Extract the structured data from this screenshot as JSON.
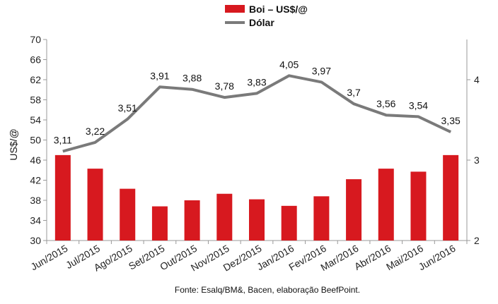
{
  "chart_data": {
    "type": "bar+line",
    "categories": [
      "Jun/2015",
      "Jul/2015",
      "Ago/2015",
      "Set/2015",
      "Out/2015",
      "Nov/2015",
      "Dez/2015",
      "Jan/2016",
      "Fev/2016",
      "Mar/2016",
      "Abr/2016",
      "Mai/2016",
      "Jun/2016"
    ],
    "series": [
      {
        "name": "Boi – US$/@",
        "type": "bar",
        "axis": "left",
        "color": "#d7191f",
        "values": [
          47.0,
          44.3,
          40.3,
          36.8,
          38.0,
          39.3,
          38.2,
          36.9,
          38.8,
          42.2,
          44.3,
          43.7,
          47.0
        ]
      },
      {
        "name": "Dólar",
        "type": "line",
        "axis": "right",
        "color": "#7a7a7a",
        "values": [
          3.11,
          3.22,
          3.51,
          3.91,
          3.88,
          3.78,
          3.83,
          4.05,
          3.97,
          3.7,
          3.56,
          3.54,
          3.35
        ],
        "labels": [
          "3,11",
          "3,22",
          "3,51",
          "3,91",
          "3,88",
          "3,78",
          "3,83",
          "4,05",
          "3,97",
          "3,7",
          "3,56",
          "3,54",
          "3,35"
        ]
      }
    ],
    "ylabel": "US$/@",
    "ylim": [
      30,
      70
    ],
    "yticks": [
      "30",
      "34",
      "38",
      "42",
      "46",
      "50",
      "54",
      "58",
      "62",
      "66",
      "70"
    ],
    "y2lim": [
      2,
      4.5
    ],
    "y2ticks": [
      "2",
      "3",
      "4"
    ],
    "legend_position": "top-center",
    "grid": false,
    "source": "Fonte: Esalq/BM&, Bacen, elaboração BeefPoint."
  }
}
